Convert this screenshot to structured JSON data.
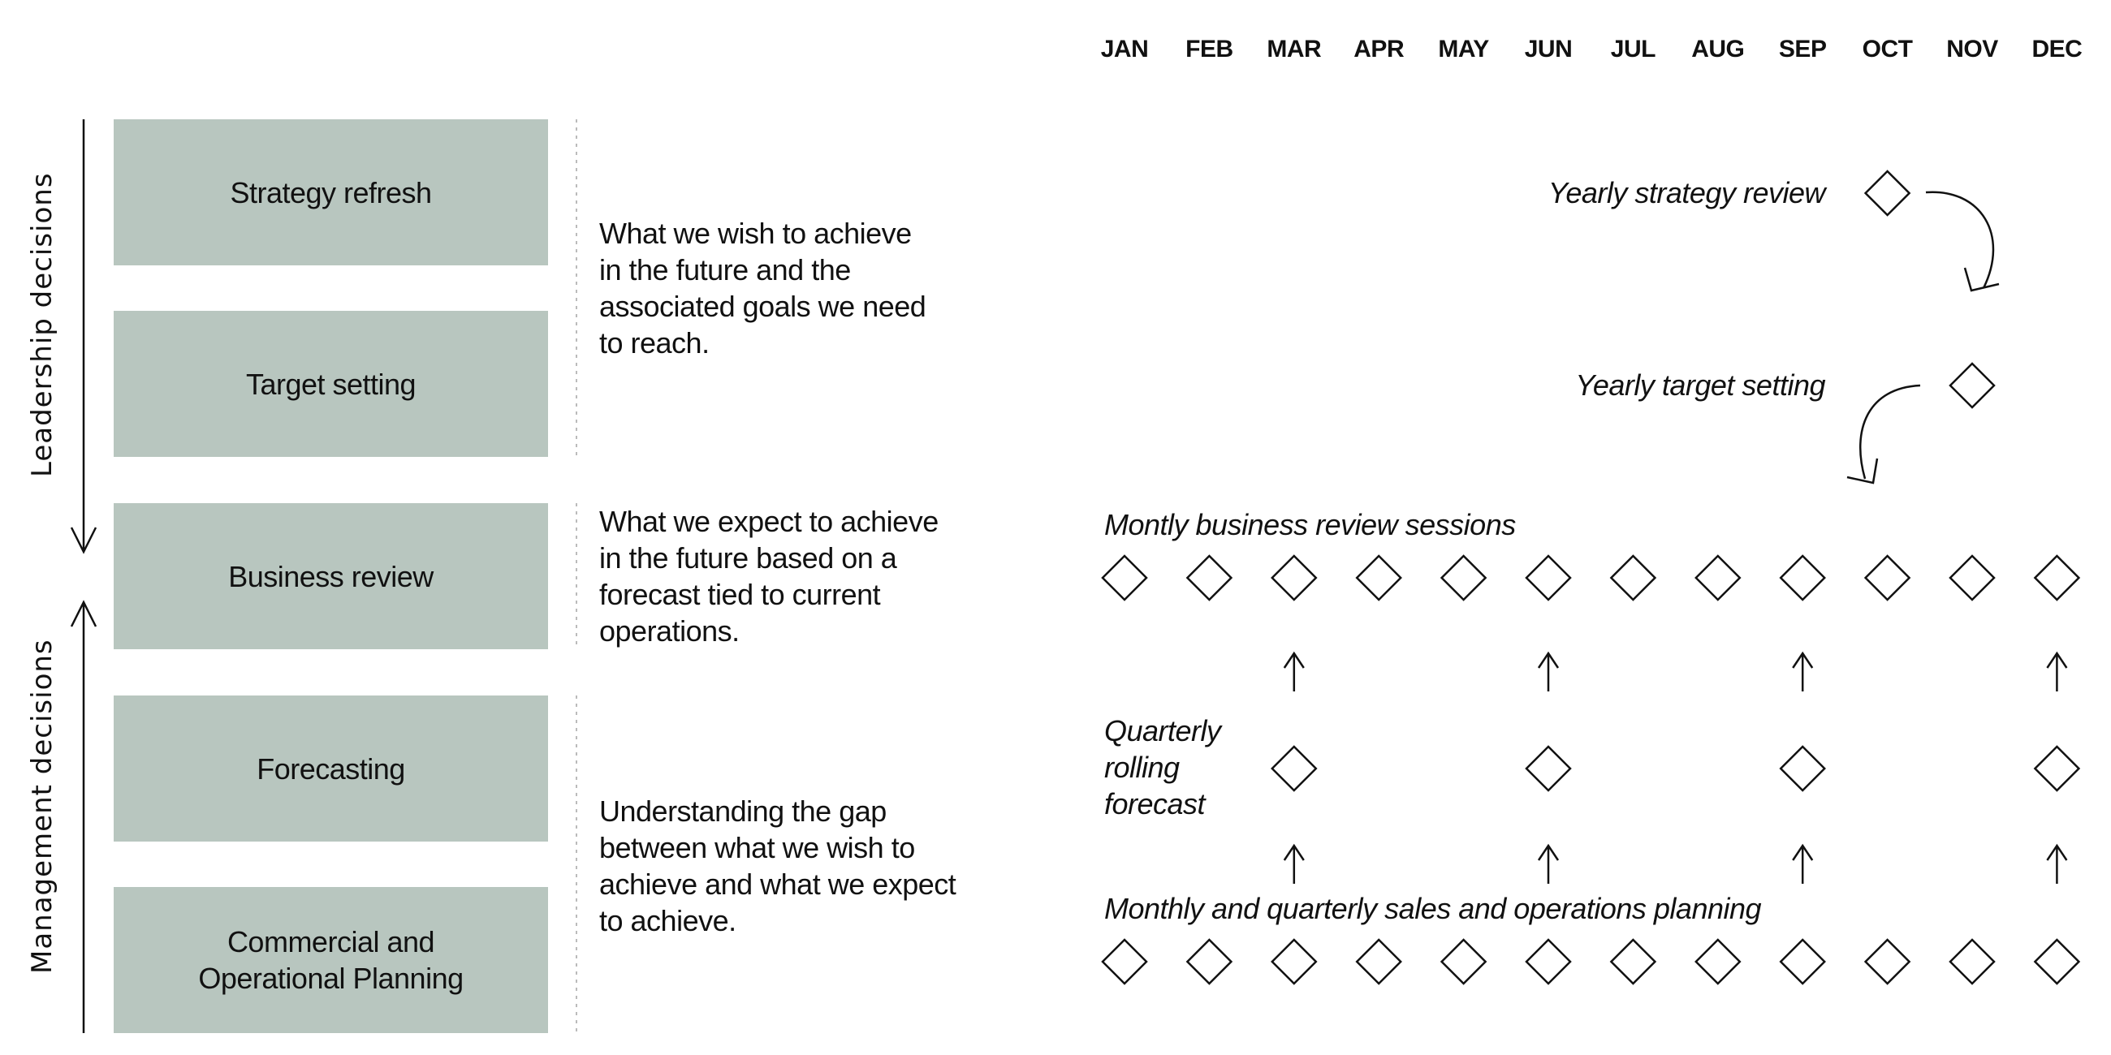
{
  "side_labels": {
    "leadership": "Leadership decisions",
    "management": "Management decisions"
  },
  "boxes": [
    {
      "label": "Strategy refresh"
    },
    {
      "label": "Target setting"
    },
    {
      "label": "Business review"
    },
    {
      "label": "Forecasting"
    },
    {
      "label": "Commercial and\nOperational Planning"
    }
  ],
  "descriptions": [
    "What we wish to achieve\nin the future and the\nassociated goals we need\nto reach.",
    "What we expect to achieve\nin the future based on a\nforecast tied to current\noperations.",
    "Understanding the gap\nbetween what we wish to\nachieve and what we expect\nto achieve."
  ],
  "months": [
    "JAN",
    "FEB",
    "MAR",
    "APR",
    "MAY",
    "JUN",
    "JUL",
    "AUG",
    "SEP",
    "OCT",
    "NOV",
    "DEC"
  ],
  "timeline": {
    "yearly_strategy": {
      "label": "Yearly strategy review",
      "months": [
        "OCT"
      ]
    },
    "yearly_target": {
      "label": "Yearly target setting",
      "months": [
        "NOV"
      ]
    },
    "business_review": {
      "label": "Montly business review sessions",
      "months": [
        "JAN",
        "FEB",
        "MAR",
        "APR",
        "MAY",
        "JUN",
        "JUL",
        "AUG",
        "SEP",
        "OCT",
        "NOV",
        "DEC"
      ]
    },
    "quarterly_forecast": {
      "label": "Quarterly\nrolling\nforecast",
      "months": [
        "MAR",
        "JUN",
        "SEP",
        "DEC"
      ]
    },
    "sop": {
      "label": "Monthly and quarterly sales and operations planning",
      "months": [
        "JAN",
        "FEB",
        "MAR",
        "APR",
        "MAY",
        "JUN",
        "JUL",
        "AUG",
        "SEP",
        "OCT",
        "NOV",
        "DEC"
      ]
    }
  },
  "colors": {
    "box": "#b8c6bf",
    "line": "#111111",
    "divider": "#bbbbbb"
  }
}
